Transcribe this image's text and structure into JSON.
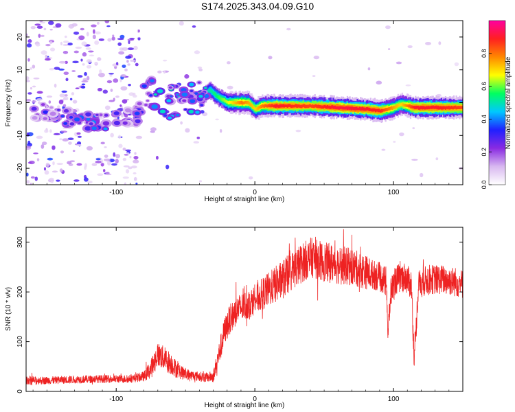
{
  "figure": {
    "title": "S174.2025.343.04.09.G10"
  },
  "colors": {
    "snr_line": "#ee2222",
    "axis": "#000000",
    "background": "#ffffff"
  },
  "chart_data": [
    {
      "type": "heatmap",
      "name": "spectrogram",
      "xlabel": "Height of straight line (km)",
      "ylabel": "Frequency (Hz)",
      "xlim": [
        -165,
        150
      ],
      "ylim": [
        -25,
        25
      ],
      "xticks": [
        -100,
        0,
        100
      ],
      "xtick_labels": [
        "-100",
        "0",
        "100"
      ],
      "yticks": [
        -20,
        -10,
        0,
        10,
        20
      ],
      "ytick_labels": [
        "-20",
        "-10",
        "0",
        "10",
        "20"
      ],
      "colorbar": {
        "label": "Normalized spectral amplitude",
        "range": [
          0.0,
          1.0
        ],
        "ticks": [
          0.0,
          0.2,
          0.4,
          0.6,
          0.8
        ],
        "tick_labels": [
          "0.0",
          "0.2",
          "0.4",
          "0.6",
          "0.8"
        ],
        "stops": [
          "#ffffff",
          "#d8b8f0",
          "#8a2be2",
          "#2020ff",
          "#00c8ff",
          "#00ff60",
          "#ffff00",
          "#ff8800",
          "#ff2020",
          "#ff00a0"
        ]
      },
      "ridge": {
        "x": [
          -150,
          -130,
          -110,
          -95,
          -85,
          -78,
          -70,
          -60,
          -50,
          -40,
          -33,
          -28,
          -20,
          -10,
          -5,
          0,
          5,
          15,
          40,
          60,
          80,
          90,
          100,
          105,
          115,
          130,
          150
        ],
        "y": [
          -3,
          -5,
          -6,
          -5,
          -4,
          3,
          0,
          -1,
          0,
          1,
          4,
          2,
          0,
          0,
          0,
          -2,
          -1,
          -1,
          -1,
          -1.5,
          -2,
          -2.5,
          -1.5,
          -0.5,
          -1.5,
          -1.5,
          -1.5
        ],
        "amplitude": [
          0.25,
          0.3,
          0.35,
          0.25,
          0.3,
          0.35,
          0.4,
          0.4,
          0.4,
          0.4,
          0.5,
          0.55,
          0.65,
          0.8,
          0.75,
          0.7,
          0.8,
          0.9,
          0.85,
          0.92,
          0.9,
          0.88,
          0.75,
          0.7,
          0.9,
          0.9,
          0.85
        ]
      }
    },
    {
      "type": "line",
      "name": "snr",
      "xlabel": "Height of straight line (km)",
      "ylabel": "SNR (10 * v/v)",
      "xlim": [
        -165,
        150
      ],
      "ylim": [
        0,
        330
      ],
      "xticks": [
        -100,
        0,
        100
      ],
      "xtick_labels": [
        "-100",
        "0",
        "100"
      ],
      "yticks": [
        0,
        100,
        200,
        300
      ],
      "ytick_labels": [
        "0",
        "100",
        "200",
        "300"
      ],
      "series": [
        {
          "name": "SNR",
          "x": [
            -165,
            -150,
            -130,
            -110,
            -90,
            -80,
            -75,
            -70,
            -65,
            -60,
            -55,
            -50,
            -45,
            -40,
            -35,
            -30,
            -25,
            -22,
            -18,
            -12,
            -5,
            0,
            10,
            20,
            30,
            40,
            50,
            60,
            70,
            80,
            85,
            90,
            95,
            96,
            98,
            102,
            108,
            113,
            115,
            118,
            125,
            135,
            145,
            150
          ],
          "y": [
            22,
            22,
            24,
            25,
            25,
            30,
            45,
            75,
            65,
            55,
            40,
            35,
            32,
            30,
            28,
            30,
            85,
            120,
            145,
            165,
            175,
            185,
            205,
            225,
            250,
            270,
            260,
            255,
            250,
            240,
            235,
            230,
            220,
            110,
            200,
            225,
            230,
            215,
            60,
            215,
            225,
            225,
            220,
            215
          ],
          "noise_amplitude": [
            8,
            8,
            8,
            8,
            8,
            10,
            20,
            25,
            25,
            22,
            15,
            12,
            10,
            10,
            10,
            12,
            25,
            28,
            30,
            30,
            30,
            30,
            35,
            40,
            40,
            40,
            40,
            40,
            38,
            35,
            30,
            30,
            30,
            30,
            30,
            30,
            30,
            30,
            25,
            30,
            30,
            30,
            30,
            30
          ]
        }
      ]
    }
  ]
}
